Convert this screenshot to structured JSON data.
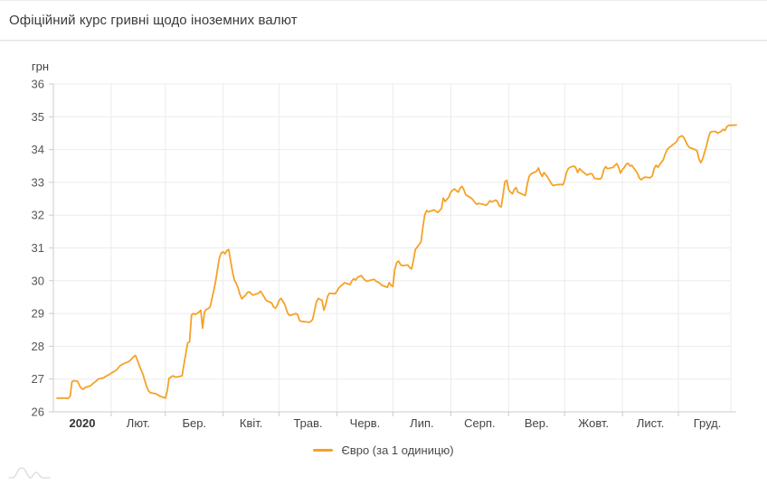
{
  "header": {
    "title": "Офіційний курс гривні щодо іноземних валют"
  },
  "legend": {
    "series_label": "Євро (за 1 одиницю)",
    "swatch_color": "#F5A228"
  },
  "colors": {
    "line": "#F5A228",
    "grid": "#ebebeb",
    "axis": "#cccccc",
    "tick_text": "#555555",
    "x_label_text": "#444444",
    "year_label_text": "#333333",
    "unit_text": "#444444",
    "watermark": "#dedede"
  },
  "chart_data": {
    "type": "line",
    "title": "Офіційний курс гривні щодо іноземних валют",
    "unit_label": "грн",
    "ylabel": "грн",
    "xlabel": "",
    "ylim": [
      26,
      36
    ],
    "y_ticks": [
      26,
      27,
      28,
      29,
      30,
      31,
      32,
      33,
      34,
      35,
      36
    ],
    "x_tick_labels": [
      "2020",
      "Лют.",
      "Бер.",
      "Квіт.",
      "Трав.",
      "Черв.",
      "Лип.",
      "Серп.",
      "Вер.",
      "Жовт.",
      "Лист.",
      "Груд."
    ],
    "month_day_offsets": [
      0,
      31,
      60,
      91,
      121,
      152,
      182,
      213,
      244,
      274,
      305,
      335,
      366
    ],
    "grid": true,
    "legend_position": "bottom",
    "series": [
      {
        "name": "Євро (за 1 одиницю)",
        "color": "#F5A228",
        "points": [
          [
            2,
            26.42
          ],
          [
            6,
            26.42
          ],
          [
            8,
            26.41
          ],
          [
            9,
            26.48
          ],
          [
            10,
            26.92
          ],
          [
            11,
            26.95
          ],
          [
            13,
            26.93
          ],
          [
            14,
            26.8
          ],
          [
            15,
            26.72
          ],
          [
            16,
            26.69
          ],
          [
            17,
            26.74
          ],
          [
            20,
            26.8
          ],
          [
            21,
            26.85
          ],
          [
            22,
            26.9
          ],
          [
            23,
            26.94
          ],
          [
            24,
            27.0
          ],
          [
            27,
            27.04
          ],
          [
            28,
            27.08
          ],
          [
            29,
            27.11
          ],
          [
            30,
            27.14
          ],
          [
            31,
            27.18
          ],
          [
            34,
            27.28
          ],
          [
            35,
            27.36
          ],
          [
            36,
            27.42
          ],
          [
            38,
            27.48
          ],
          [
            40,
            27.52
          ],
          [
            41,
            27.56
          ],
          [
            42,
            27.62
          ],
          [
            43,
            27.68
          ],
          [
            44,
            27.72
          ],
          [
            45,
            27.58
          ],
          [
            46,
            27.42
          ],
          [
            48,
            27.15
          ],
          [
            49,
            26.95
          ],
          [
            50,
            26.78
          ],
          [
            51,
            26.64
          ],
          [
            52,
            26.58
          ],
          [
            55,
            26.55
          ],
          [
            56,
            26.52
          ],
          [
            57,
            26.48
          ],
          [
            58,
            26.46
          ],
          [
            59,
            26.44
          ],
          [
            60,
            26.42
          ],
          [
            61,
            26.62
          ],
          [
            62,
            27.02
          ],
          [
            63,
            27.06
          ],
          [
            64,
            27.1
          ],
          [
            65,
            27.07
          ],
          [
            66,
            27.06
          ],
          [
            69,
            27.1
          ],
          [
            70,
            27.45
          ],
          [
            71,
            27.78
          ],
          [
            72,
            28.1
          ],
          [
            73,
            28.14
          ],
          [
            74,
            28.95
          ],
          [
            75,
            29.0
          ],
          [
            76,
            28.97
          ],
          [
            77,
            29.0
          ],
          [
            78,
            29.04
          ],
          [
            79,
            29.1
          ],
          [
            80,
            28.55
          ],
          [
            81,
            29.05
          ],
          [
            82,
            29.12
          ],
          [
            83,
            29.15
          ],
          [
            84,
            29.2
          ],
          [
            85,
            29.45
          ],
          [
            86,
            29.7
          ],
          [
            87,
            30.0
          ],
          [
            88,
            30.35
          ],
          [
            89,
            30.7
          ],
          [
            90,
            30.85
          ],
          [
            91,
            30.88
          ],
          [
            92,
            30.82
          ],
          [
            93,
            30.92
          ],
          [
            94,
            30.95
          ],
          [
            95,
            30.6
          ],
          [
            96,
            30.28
          ],
          [
            97,
            30.02
          ],
          [
            98,
            29.92
          ],
          [
            99,
            29.78
          ],
          [
            100,
            29.58
          ],
          [
            101,
            29.45
          ],
          [
            103,
            29.56
          ],
          [
            104,
            29.64
          ],
          [
            105,
            29.66
          ],
          [
            106,
            29.6
          ],
          [
            107,
            29.56
          ],
          [
            110,
            29.62
          ],
          [
            111,
            29.68
          ],
          [
            112,
            29.6
          ],
          [
            113,
            29.5
          ],
          [
            114,
            29.4
          ],
          [
            117,
            29.32
          ],
          [
            118,
            29.2
          ],
          [
            119,
            29.16
          ],
          [
            120,
            29.24
          ],
          [
            121,
            29.4
          ],
          [
            122,
            29.46
          ],
          [
            124,
            29.28
          ],
          [
            125,
            29.1
          ],
          [
            126,
            28.97
          ],
          [
            127,
            28.94
          ],
          [
            130,
            29.0
          ],
          [
            131,
            28.96
          ],
          [
            132,
            28.78
          ],
          [
            133,
            28.76
          ],
          [
            136,
            28.74
          ],
          [
            137,
            28.73
          ],
          [
            138,
            28.76
          ],
          [
            139,
            28.82
          ],
          [
            140,
            29.1
          ],
          [
            141,
            29.36
          ],
          [
            142,
            29.46
          ],
          [
            144,
            29.4
          ],
          [
            145,
            29.1
          ],
          [
            146,
            29.28
          ],
          [
            147,
            29.52
          ],
          [
            148,
            29.62
          ],
          [
            151,
            29.6
          ],
          [
            152,
            29.68
          ],
          [
            153,
            29.78
          ],
          [
            154,
            29.84
          ],
          [
            155,
            29.88
          ],
          [
            156,
            29.94
          ],
          [
            158,
            29.9
          ],
          [
            159,
            29.88
          ],
          [
            160,
            30.0
          ],
          [
            161,
            30.06
          ],
          [
            162,
            30.02
          ],
          [
            163,
            30.1
          ],
          [
            165,
            30.16
          ],
          [
            166,
            30.08
          ],
          [
            167,
            30.02
          ],
          [
            168,
            29.98
          ],
          [
            169,
            30.0
          ],
          [
            172,
            30.04
          ],
          [
            173,
            29.98
          ],
          [
            174,
            29.96
          ],
          [
            175,
            29.92
          ],
          [
            176,
            29.86
          ],
          [
            179,
            29.8
          ],
          [
            180,
            29.94
          ],
          [
            181,
            29.86
          ],
          [
            182,
            29.82
          ],
          [
            183,
            30.35
          ],
          [
            184,
            30.55
          ],
          [
            185,
            30.6
          ],
          [
            186,
            30.5
          ],
          [
            187,
            30.46
          ],
          [
            190,
            30.48
          ],
          [
            191,
            30.4
          ],
          [
            192,
            30.36
          ],
          [
            193,
            30.62
          ],
          [
            194,
            30.95
          ],
          [
            196,
            31.1
          ],
          [
            197,
            31.18
          ],
          [
            198,
            31.6
          ],
          [
            199,
            32.0
          ],
          [
            200,
            32.14
          ],
          [
            201,
            32.1
          ],
          [
            204,
            32.16
          ],
          [
            205,
            32.12
          ],
          [
            206,
            32.08
          ],
          [
            207,
            32.14
          ],
          [
            208,
            32.2
          ],
          [
            209,
            32.52
          ],
          [
            210,
            32.42
          ],
          [
            212,
            32.55
          ],
          [
            213,
            32.7
          ],
          [
            214,
            32.76
          ],
          [
            215,
            32.8
          ],
          [
            217,
            32.7
          ],
          [
            218,
            32.82
          ],
          [
            219,
            32.88
          ],
          [
            220,
            32.78
          ],
          [
            221,
            32.62
          ],
          [
            224,
            32.52
          ],
          [
            225,
            32.46
          ],
          [
            226,
            32.38
          ],
          [
            227,
            32.33
          ],
          [
            228,
            32.36
          ],
          [
            231,
            32.32
          ],
          [
            232,
            32.3
          ],
          [
            233,
            32.36
          ],
          [
            234,
            32.44
          ],
          [
            235,
            32.4
          ],
          [
            237,
            32.46
          ],
          [
            238,
            32.42
          ],
          [
            239,
            32.28
          ],
          [
            240,
            32.25
          ],
          [
            241,
            32.6
          ],
          [
            242,
            33.02
          ],
          [
            243,
            33.06
          ],
          [
            244,
            32.78
          ],
          [
            245,
            32.7
          ],
          [
            246,
            32.65
          ],
          [
            247,
            32.78
          ],
          [
            248,
            32.84
          ],
          [
            249,
            32.7
          ],
          [
            252,
            32.62
          ],
          [
            253,
            32.6
          ],
          [
            254,
            32.95
          ],
          [
            255,
            33.18
          ],
          [
            256,
            33.26
          ],
          [
            259,
            33.34
          ],
          [
            260,
            33.44
          ],
          [
            261,
            33.28
          ],
          [
            262,
            33.18
          ],
          [
            263,
            33.3
          ],
          [
            265,
            33.15
          ],
          [
            266,
            33.05
          ],
          [
            267,
            32.95
          ],
          [
            268,
            32.9
          ],
          [
            269,
            32.92
          ],
          [
            272,
            32.94
          ],
          [
            273,
            32.92
          ],
          [
            274,
            33.05
          ],
          [
            275,
            33.3
          ],
          [
            276,
            33.42
          ],
          [
            277,
            33.46
          ],
          [
            279,
            33.5
          ],
          [
            280,
            33.44
          ],
          [
            281,
            33.3
          ],
          [
            282,
            33.42
          ],
          [
            283,
            33.36
          ],
          [
            286,
            33.22
          ],
          [
            287,
            33.25
          ],
          [
            288,
            33.27
          ],
          [
            289,
            33.24
          ],
          [
            290,
            33.12
          ],
          [
            293,
            33.1
          ],
          [
            294,
            33.16
          ],
          [
            295,
            33.38
          ],
          [
            296,
            33.48
          ],
          [
            297,
            33.42
          ],
          [
            300,
            33.46
          ],
          [
            301,
            33.52
          ],
          [
            302,
            33.57
          ],
          [
            303,
            33.45
          ],
          [
            304,
            33.28
          ],
          [
            305,
            33.4
          ],
          [
            306,
            33.45
          ],
          [
            307,
            33.55
          ],
          [
            308,
            33.58
          ],
          [
            309,
            33.5
          ],
          [
            310,
            33.52
          ],
          [
            313,
            33.28
          ],
          [
            314,
            33.14
          ],
          [
            315,
            33.08
          ],
          [
            316,
            33.12
          ],
          [
            317,
            33.16
          ],
          [
            320,
            33.14
          ],
          [
            321,
            33.2
          ],
          [
            322,
            33.42
          ],
          [
            323,
            33.52
          ],
          [
            324,
            33.46
          ],
          [
            327,
            33.7
          ],
          [
            328,
            33.88
          ],
          [
            329,
            34.0
          ],
          [
            330,
            34.06
          ],
          [
            331,
            34.1
          ],
          [
            334,
            34.24
          ],
          [
            335,
            34.36
          ],
          [
            336,
            34.4
          ],
          [
            337,
            34.42
          ],
          [
            338,
            34.36
          ],
          [
            340,
            34.12
          ],
          [
            341,
            34.06
          ],
          [
            344,
            34.0
          ],
          [
            345,
            33.96
          ],
          [
            346,
            33.72
          ],
          [
            347,
            33.6
          ],
          [
            348,
            33.72
          ],
          [
            350,
            34.1
          ],
          [
            351,
            34.35
          ],
          [
            352,
            34.52
          ],
          [
            353,
            34.55
          ],
          [
            355,
            34.55
          ],
          [
            356,
            34.5
          ],
          [
            358,
            34.56
          ],
          [
            359,
            34.62
          ],
          [
            360,
            34.58
          ],
          [
            361,
            34.7
          ],
          [
            362,
            34.74
          ],
          [
            364,
            34.74
          ],
          [
            366,
            34.75
          ]
        ]
      }
    ]
  }
}
